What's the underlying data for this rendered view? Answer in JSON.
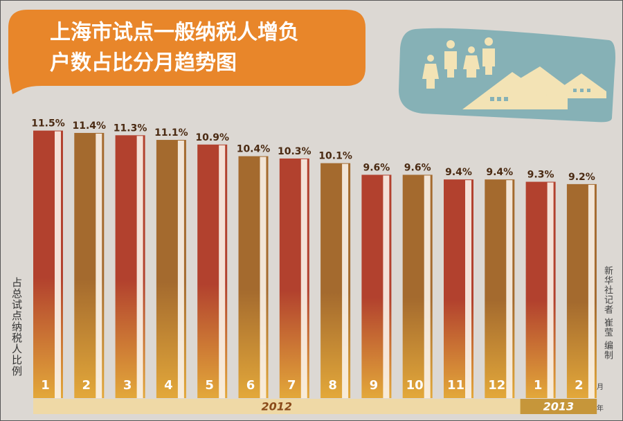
{
  "chart_data": {
    "type": "bar",
    "title_lines": [
      "上海市试点一般纳税人增负",
      "户数占比分月趋势图"
    ],
    "y_label": "占总试点纳税人比例",
    "credit": "新华社记者 崔莹 编制",
    "month_unit": "月",
    "year_unit": "年",
    "categories": [
      "1",
      "2",
      "3",
      "4",
      "5",
      "6",
      "7",
      "8",
      "9",
      "10",
      "11",
      "12",
      "1",
      "2"
    ],
    "years": [
      "2012",
      "2013"
    ],
    "values": [
      11.5,
      11.4,
      11.3,
      11.1,
      10.9,
      10.4,
      10.3,
      10.1,
      9.6,
      9.6,
      9.4,
      9.4,
      9.3,
      9.2
    ],
    "value_labels": [
      "11.5%",
      "11.4%",
      "11.3%",
      "11.1%",
      "10.9%",
      "10.4%",
      "10.3%",
      "10.1%",
      "9.6%",
      "9.6%",
      "9.4%",
      "9.4%",
      "9.3%",
      "9.2%"
    ],
    "colors": [
      "#b2412e",
      "#a46a2e",
      "#b2412e",
      "#a46a2e",
      "#b2412e",
      "#a46a2e",
      "#b2412e",
      "#a46a2e",
      "#b2412e",
      "#a46a2e",
      "#b2412e",
      "#a46a2e",
      "#b2412e",
      "#a46a2e"
    ]
  }
}
